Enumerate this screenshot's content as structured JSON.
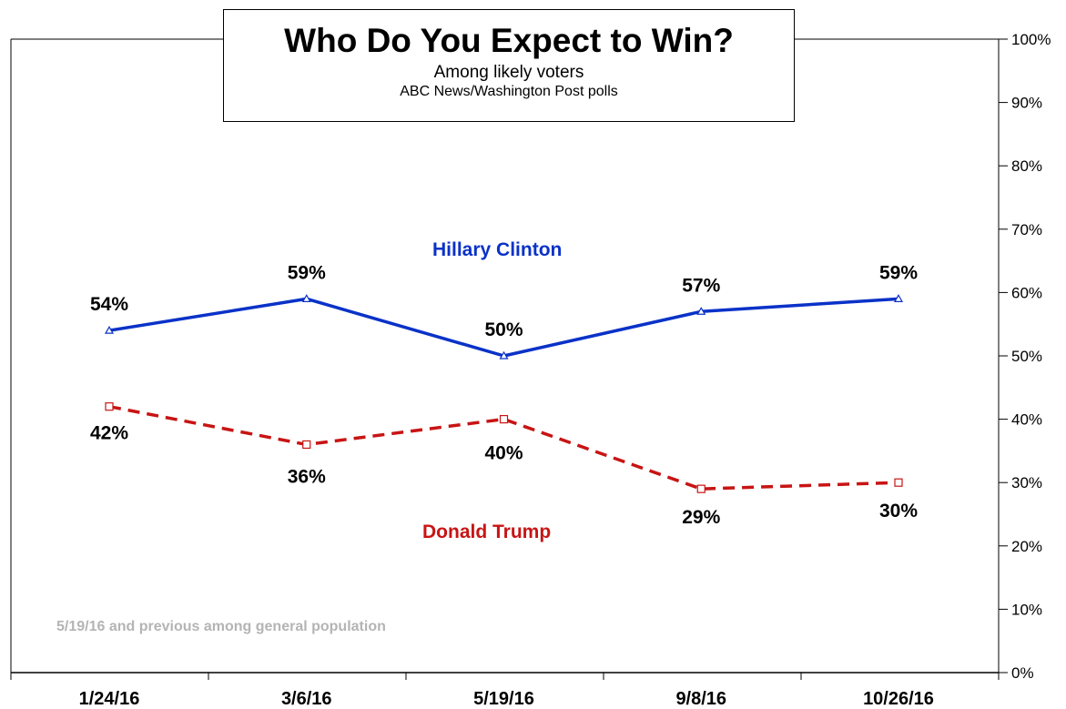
{
  "chart_data": {
    "type": "line",
    "title": "Who Do You Expect to Win?",
    "subtitle": "Among likely voters",
    "source": "ABC News/Washington  Post polls",
    "note": "5/19/16 and previous among general population",
    "categories": [
      "1/24/16",
      "3/6/16",
      "5/19/16",
      "9/8/16",
      "10/26/16"
    ],
    "yaxis": {
      "min": 0,
      "max": 100,
      "step": 10,
      "position": "right",
      "ticks": [
        "0%",
        "10%",
        "20%",
        "30%",
        "40%",
        "50%",
        "60%",
        "70%",
        "80%",
        "90%",
        "100%"
      ]
    },
    "grid": false,
    "series": [
      {
        "name": "Hillary Clinton",
        "values": [
          54,
          59,
          50,
          57,
          59
        ],
        "labels": [
          "54%",
          "59%",
          "50%",
          "57%",
          "59%"
        ],
        "color": "#0a32c8",
        "line_style": "solid",
        "marker": "triangle"
      },
      {
        "name": "Donald Trump",
        "values": [
          42,
          36,
          40,
          29,
          30
        ],
        "labels": [
          "42%",
          "36%",
          "40%",
          "29%",
          "30%"
        ],
        "color": "#c81414",
        "line_style": "dashed",
        "marker": "square"
      }
    ]
  }
}
